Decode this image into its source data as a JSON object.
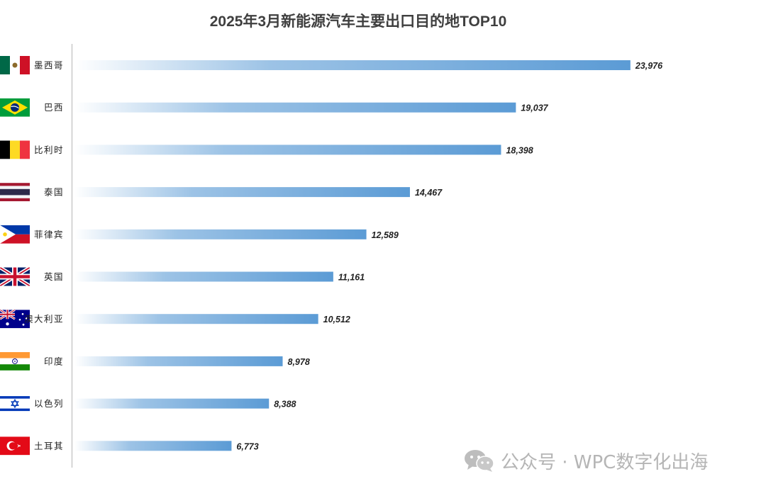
{
  "chart_data": {
    "type": "bar",
    "orientation": "horizontal",
    "title": "2025年3月新能源汽车主要出口目的地TOP10",
    "categories": [
      "墨西哥",
      "巴西",
      "比利时",
      "泰国",
      "菲律宾",
      "英国",
      "澳大利亚",
      "印度",
      "以色列",
      "土耳其"
    ],
    "values": [
      23976,
      19037,
      18398,
      14467,
      12589,
      11161,
      10512,
      8978,
      8388,
      6773
    ],
    "value_labels": [
      "23,976",
      "19,037",
      "18,398",
      "14,467",
      "12,589",
      "11,161",
      "10,512",
      "8,978",
      "8,388",
      "6,773"
    ],
    "xlim": [
      0,
      26000
    ],
    "grid": false,
    "bar_color": "#5b9bd5",
    "flags": [
      "mexico-flag",
      "brazil-flag",
      "belgium-flag",
      "thailand-flag",
      "philippines-flag",
      "uk-flag",
      "australia-flag",
      "india-flag",
      "israel-flag",
      "turkey-flag"
    ]
  },
  "watermark": {
    "text": "公众号 · WPC数字化出海",
    "icon": "wechat-icon"
  }
}
